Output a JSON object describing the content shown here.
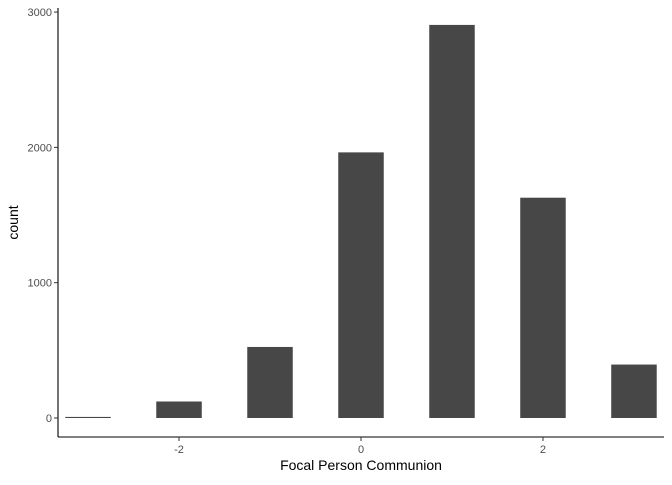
{
  "chart_data": {
    "type": "bar",
    "title": "",
    "xlabel": "Focal Person Communion",
    "ylabel": "count",
    "x": [
      -3,
      -2,
      -1,
      0,
      1,
      2,
      3
    ],
    "values": [
      8,
      122,
      525,
      1963,
      2905,
      1628,
      395
    ],
    "xlim": [
      -3.33,
      3.33
    ],
    "ylim": [
      0,
      3030
    ],
    "x_ticks": [
      -2,
      0,
      2
    ],
    "y_ticks": [
      0,
      1000,
      2000,
      3000
    ],
    "bar_width": 0.5,
    "bar_color": "#474747",
    "axis_color": "#000000",
    "grid": false,
    "legend": "none"
  }
}
